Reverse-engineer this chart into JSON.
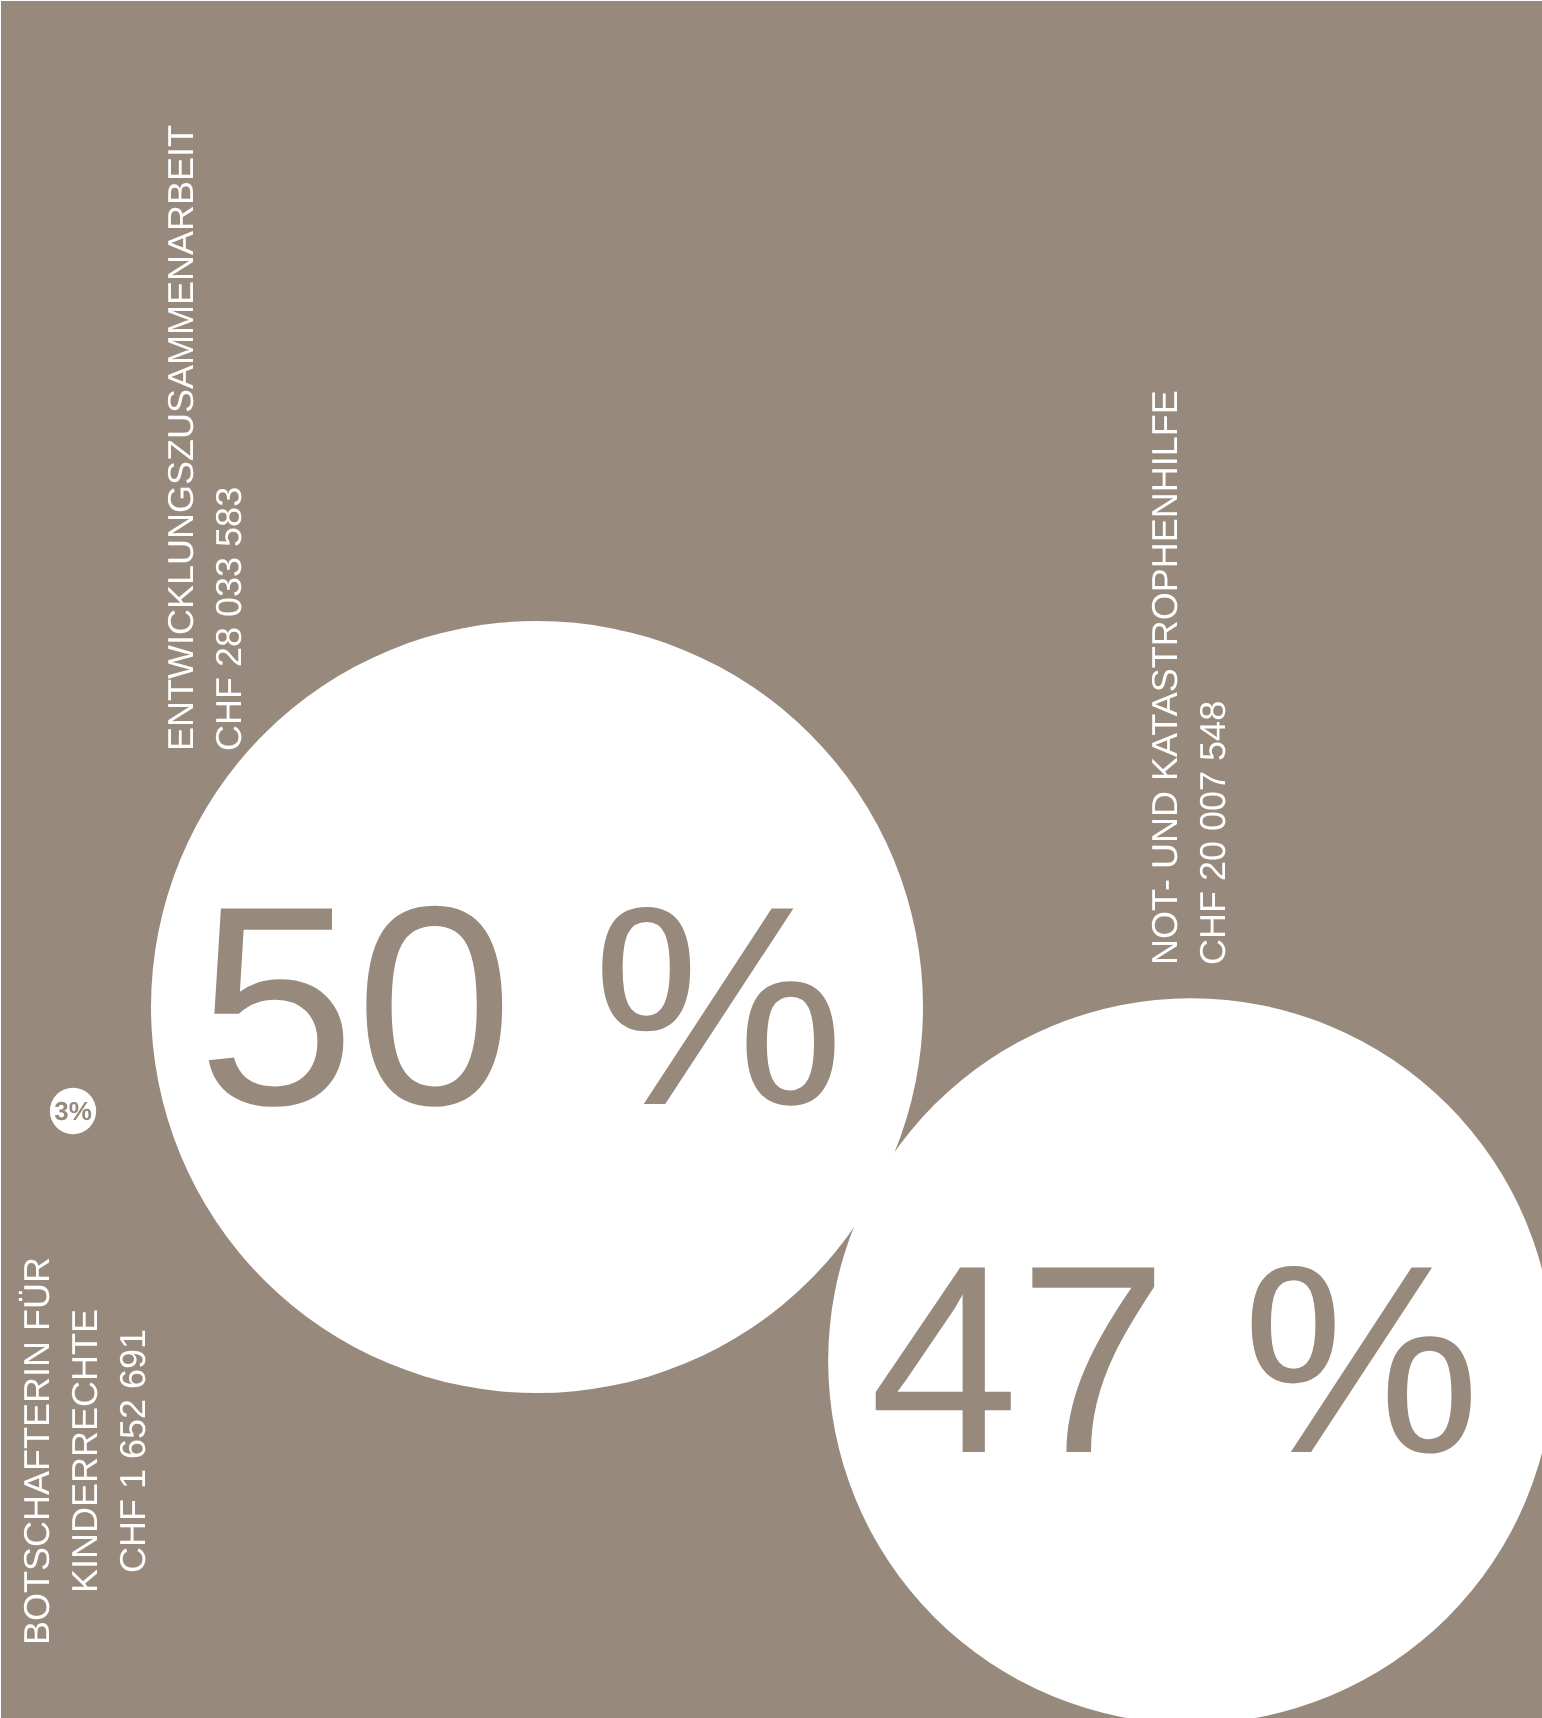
{
  "chart_data": {
    "type": "other",
    "categories": [
      "ENTWICKLUNGSZUSAMMENARBEIT",
      "NOT- UND KATASTROPHENHILFE",
      "BOTSCHAFTERIN FÜR\nKINDERRECHTE"
    ],
    "values": [
      50,
      47,
      3
    ],
    "value_labels": [
      "50 %",
      "47 %",
      "3%"
    ],
    "colors": [
      "#ffffff",
      "#ffffff",
      "#ffffff"
    ],
    "annotations": [
      "CHF 28 033 583",
      "CHF 20 007 548",
      "CHF 1 652 691"
    ]
  }
}
